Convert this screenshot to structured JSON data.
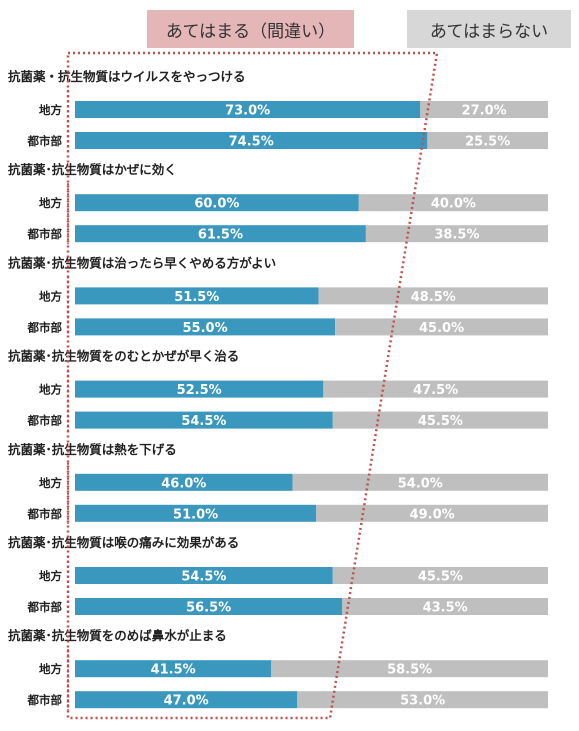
{
  "legend": {
    "yes_label": "あてはまる（間違い）",
    "no_label": "あてはまらない"
  },
  "colors": {
    "yes": "#3a97bd",
    "no": "#bfbfbf",
    "legend_yes_bg": "#e5b6b8",
    "legend_no_bg": "#d7d7d7",
    "highlight_border": "#c0504d"
  },
  "chart_data": {
    "type": "bar",
    "orientation": "horizontal-stacked-100",
    "unit": "%",
    "series": [
      {
        "name": "あてはまる（間違い）"
      },
      {
        "name": "あてはまらない"
      }
    ],
    "groups": [
      {
        "title": "抗菌薬・抗生物質はウイルスをやっつける",
        "rows": [
          {
            "label": "地方",
            "yes": 73.0,
            "no": 27.0
          },
          {
            "label": "都市部",
            "yes": 74.5,
            "no": 25.5
          }
        ]
      },
      {
        "title": "抗菌薬･抗生物質はかぜに効く",
        "rows": [
          {
            "label": "地方",
            "yes": 60.0,
            "no": 40.0
          },
          {
            "label": "都市部",
            "yes": 61.5,
            "no": 38.5
          }
        ]
      },
      {
        "title": "抗菌薬･抗生物質は治ったら早くやめる方がよい",
        "rows": [
          {
            "label": "地方",
            "yes": 51.5,
            "no": 48.5
          },
          {
            "label": "都市部",
            "yes": 55.0,
            "no": 45.0
          }
        ]
      },
      {
        "title": "抗菌薬･抗生物質をのむとかぜが早く治る",
        "rows": [
          {
            "label": "地方",
            "yes": 52.5,
            "no": 47.5
          },
          {
            "label": "都市部",
            "yes": 54.5,
            "no": 45.5
          }
        ]
      },
      {
        "title": "抗菌薬･抗生物質は熱を下げる",
        "rows": [
          {
            "label": "地方",
            "yes": 46.0,
            "no": 54.0
          },
          {
            "label": "都市部",
            "yes": 51.0,
            "no": 49.0
          }
        ]
      },
      {
        "title": "抗菌薬･抗生物質は喉の痛みに効果がある",
        "rows": [
          {
            "label": "地方",
            "yes": 54.5,
            "no": 45.5
          },
          {
            "label": "都市部",
            "yes": 56.5,
            "no": 43.5
          }
        ]
      },
      {
        "title": "抗菌薬･抗生物質をのめば鼻水が止まる",
        "rows": [
          {
            "label": "地方",
            "yes": 41.5,
            "no": 58.5
          },
          {
            "label": "都市部",
            "yes": 47.0,
            "no": 53.0
          }
        ]
      }
    ]
  }
}
